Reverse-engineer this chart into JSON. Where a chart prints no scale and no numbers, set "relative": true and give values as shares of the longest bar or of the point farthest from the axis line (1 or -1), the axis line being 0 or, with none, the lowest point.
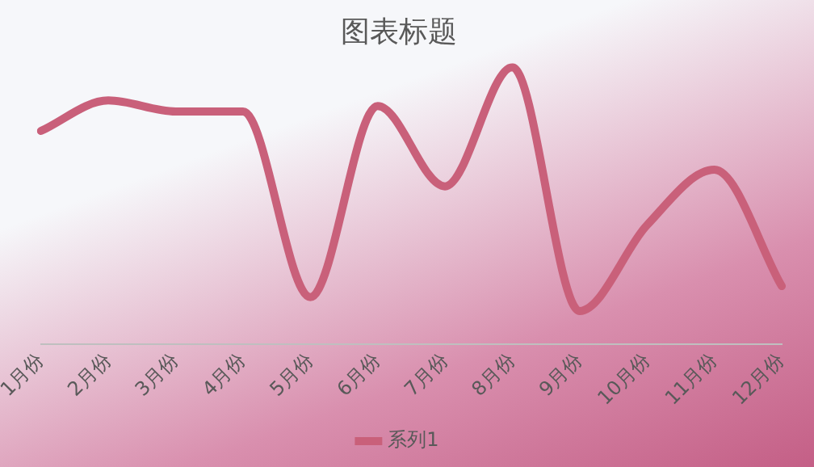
{
  "chart_data": {
    "type": "line",
    "title": "图表标题",
    "relative": true,
    "categories": [
      "1月份",
      "2月份",
      "3月份",
      "4月份",
      "5月份",
      "6月份",
      "7月份",
      "8月份",
      "9月份",
      "10月份",
      "11月份",
      "12月份"
    ],
    "series": [
      {
        "name": "系列1",
        "color": "#c9607a",
        "values": [
          0.77,
          0.88,
          0.84,
          0.84,
          0.17,
          0.86,
          0.57,
          1,
          0.12,
          0.43,
          0.63,
          0.21
        ]
      }
    ],
    "legend": "bottom",
    "marker": "none",
    "grid": false,
    "line_style": "solid"
  }
}
